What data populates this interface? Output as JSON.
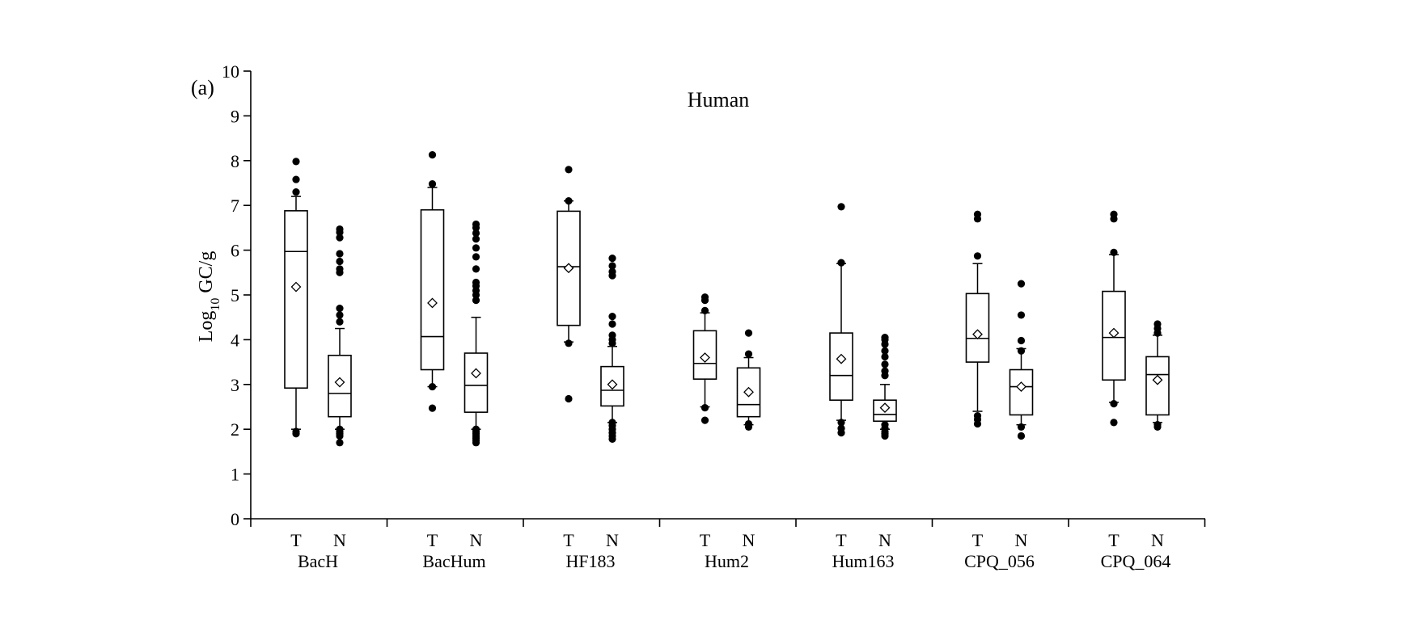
{
  "chart_data": {
    "type": "box",
    "panel_label": "(a)",
    "title": "Human",
    "ylabel": {
      "prefix": "Log",
      "sub": "10",
      "suffix": " GC/g"
    },
    "ylim": [
      0,
      10
    ],
    "yticks": [
      "0",
      "1",
      "2",
      "3",
      "4",
      "5",
      "6",
      "7",
      "8",
      "9",
      "10"
    ],
    "grid": false,
    "groups": [
      {
        "name": "BacH",
        "boxes": [
          {
            "label": "T",
            "whisker_low": 2.0,
            "q1": 2.92,
            "median": 5.97,
            "q3": 6.88,
            "whisker_high": 7.2,
            "mean": 5.18,
            "outliers": [
              1.9,
              1.95,
              7.3,
              7.58,
              7.98
            ]
          },
          {
            "label": "N",
            "whisker_low": 2.0,
            "q1": 2.28,
            "median": 2.8,
            "q3": 3.65,
            "whisker_high": 4.25,
            "mean": 3.05,
            "outliers": [
              1.7,
              1.85,
              1.9,
              1.95,
              2.0,
              4.4,
              4.55,
              4.7,
              5.5,
              5.58,
              5.75,
              5.92,
              6.28,
              6.4,
              6.47
            ]
          }
        ]
      },
      {
        "name": "BacHum",
        "boxes": [
          {
            "label": "T",
            "whisker_low": 2.95,
            "q1": 3.33,
            "median": 4.07,
            "q3": 6.9,
            "whisker_high": 7.4,
            "mean": 4.82,
            "outliers": [
              2.47,
              2.95,
              7.48,
              8.13
            ]
          },
          {
            "label": "N",
            "whisker_low": 2.0,
            "q1": 2.38,
            "median": 2.98,
            "q3": 3.7,
            "whisker_high": 4.5,
            "mean": 3.25,
            "outliers": [
              1.7,
              1.75,
              1.8,
              1.85,
              1.9,
              1.95,
              2.0,
              4.88,
              5.0,
              5.1,
              5.2,
              5.28,
              5.58,
              5.85,
              6.05,
              6.25,
              6.38,
              6.5,
              6.58
            ]
          }
        ]
      },
      {
        "name": "HF183",
        "boxes": [
          {
            "label": "T",
            "whisker_low": 3.95,
            "q1": 4.32,
            "median": 5.63,
            "q3": 6.87,
            "whisker_high": 7.1,
            "mean": 5.6,
            "outliers": [
              2.68,
              3.92,
              7.1,
              7.8
            ]
          },
          {
            "label": "N",
            "whisker_low": 2.15,
            "q1": 2.52,
            "median": 2.87,
            "q3": 3.4,
            "whisker_high": 3.85,
            "mean": 3.0,
            "outliers": [
              1.78,
              1.85,
              1.92,
              2.0,
              2.08,
              2.15,
              3.92,
              4.0,
              4.1,
              4.35,
              4.52,
              5.43,
              5.52,
              5.65,
              5.82
            ]
          }
        ]
      },
      {
        "name": "Hum2",
        "boxes": [
          {
            "label": "T",
            "whisker_low": 2.5,
            "q1": 3.12,
            "median": 3.47,
            "q3": 4.2,
            "whisker_high": 4.6,
            "mean": 3.6,
            "outliers": [
              2.2,
              2.48,
              4.65,
              4.88,
              4.95
            ]
          },
          {
            "label": "N",
            "whisker_low": 2.1,
            "q1": 2.28,
            "median": 2.55,
            "q3": 3.37,
            "whisker_high": 3.6,
            "mean": 2.83,
            "outliers": [
              2.05,
              2.12,
              3.68,
              4.15
            ]
          }
        ]
      },
      {
        "name": "Hum163",
        "boxes": [
          {
            "label": "T",
            "whisker_low": 2.2,
            "q1": 2.65,
            "median": 3.2,
            "q3": 4.15,
            "whisker_high": 5.7,
            "mean": 3.57,
            "outliers": [
              1.92,
              2.02,
              2.15,
              5.72,
              6.97
            ]
          },
          {
            "label": "N",
            "whisker_low": 2.0,
            "q1": 2.18,
            "median": 2.33,
            "q3": 2.65,
            "whisker_high": 3.0,
            "mean": 2.48,
            "outliers": [
              1.85,
              1.9,
              1.95,
              2.02,
              2.1,
              3.2,
              3.3,
              3.45,
              3.62,
              3.75,
              3.9,
              4.0,
              4.05
            ]
          }
        ]
      },
      {
        "name": "CPQ_056",
        "boxes": [
          {
            "label": "T",
            "whisker_low": 2.4,
            "q1": 3.5,
            "median": 4.03,
            "q3": 5.03,
            "whisker_high": 5.7,
            "mean": 4.12,
            "outliers": [
              2.12,
              2.22,
              2.3,
              5.87,
              6.7,
              6.8
            ]
          },
          {
            "label": "N",
            "whisker_low": 2.1,
            "q1": 2.32,
            "median": 2.95,
            "q3": 3.33,
            "whisker_high": 3.8,
            "mean": 2.95,
            "outliers": [
              1.85,
              2.05,
              3.75,
              3.98,
              4.55,
              5.25
            ]
          }
        ]
      },
      {
        "name": "CPQ_064",
        "boxes": [
          {
            "label": "T",
            "whisker_low": 2.6,
            "q1": 3.1,
            "median": 4.05,
            "q3": 5.08,
            "whisker_high": 5.9,
            "mean": 4.15,
            "outliers": [
              2.15,
              2.57,
              5.95,
              6.7,
              6.8
            ]
          },
          {
            "label": "N",
            "whisker_low": 2.15,
            "q1": 2.32,
            "median": 3.22,
            "q3": 3.62,
            "whisker_high": 4.1,
            "mean": 3.1,
            "outliers": [
              2.05,
              2.1,
              4.15,
              4.25,
              4.35
            ]
          }
        ]
      }
    ]
  }
}
